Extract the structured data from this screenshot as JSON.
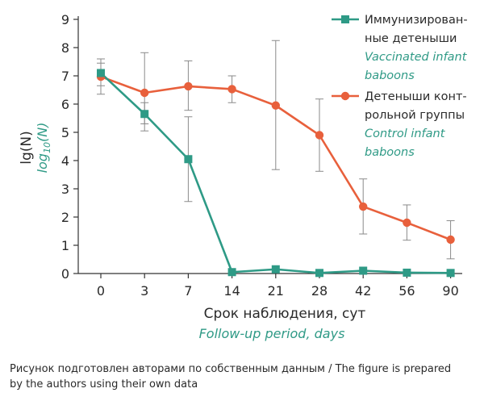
{
  "chart_data": {
    "type": "line",
    "categories": [
      "0",
      "3",
      "7",
      "14",
      "21",
      "28",
      "42",
      "56",
      "90"
    ],
    "ylim": [
      0,
      9
    ],
    "yticks": [
      "0",
      "1",
      "2",
      "3",
      "4",
      "5",
      "6",
      "7",
      "8",
      "9"
    ],
    "ylabel": "lg(N)",
    "ylabel_italic_main": "log",
    "ylabel_italic_sub": "10",
    "ylabel_italic_tail": "(N)",
    "xlabel": "Срок наблюдения, сут",
    "xlabel_italic": "Follow-up period, days",
    "grid": false,
    "legend_position": "top-right",
    "series": [
      {
        "name": "Иммунизированные детеныши / Vaccinated infant baboons",
        "marker": "square",
        "color": "#2e9a86",
        "values": [
          7.1,
          5.65,
          4.05,
          0.05,
          0.15,
          0.02,
          0.1,
          0.03,
          0.02
        ],
        "err_low": [
          6.35,
          5.05,
          2.55,
          0.0,
          0.0,
          0.0,
          0.0,
          0.0,
          0.0
        ],
        "err_high": [
          7.6,
          6.05,
          5.55,
          0.1,
          0.25,
          0.05,
          0.2,
          0.06,
          0.05
        ]
      },
      {
        "name": "Детеныши контрольной группы / Control infant baboons",
        "marker": "circle",
        "color": "#e8603c",
        "values": [
          6.97,
          6.4,
          6.63,
          6.53,
          5.95,
          4.9,
          2.37,
          1.8,
          1.2
        ],
        "err_low": [
          6.65,
          5.3,
          5.78,
          6.05,
          3.68,
          3.62,
          1.4,
          1.18,
          0.52
        ],
        "err_high": [
          7.45,
          7.82,
          7.53,
          7.0,
          8.25,
          6.18,
          3.35,
          2.43,
          1.87
        ]
      }
    ],
    "legend": [
      {
        "lines": [
          "Иммунизирован-",
          "ные детеныши"
        ],
        "italic_lines": [
          "Vaccinated infant",
          "baboons"
        ]
      },
      {
        "lines": [
          "Детеныши конт-",
          "рольной группы"
        ],
        "italic_lines": [
          "Control infant",
          "baboons"
        ]
      }
    ]
  },
  "caption": {
    "line1": "Рисунок подготовлен авторами по собственным данным / The figure is prepared",
    "line2": "by the authors using their own data"
  }
}
